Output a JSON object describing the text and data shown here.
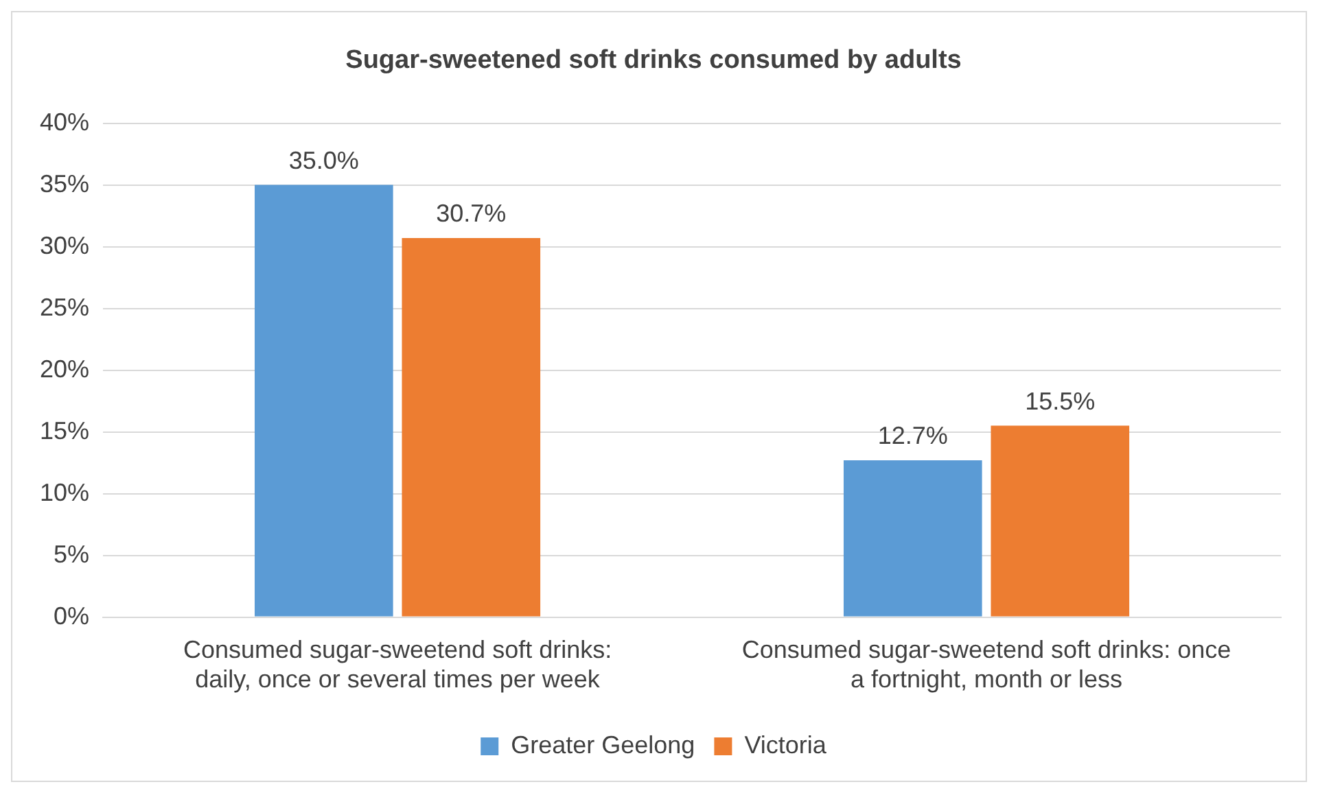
{
  "chart_data": {
    "type": "bar",
    "title": "Sugar-sweetened soft drinks consumed by adults",
    "categories": [
      "Consumed sugar-sweetend soft drinks: daily, once or several times per week",
      "Consumed sugar-sweetend soft drinks: once a fortnight, month or less"
    ],
    "series": [
      {
        "name": "Greater Geelong",
        "color": "#5b9bd5",
        "values": [
          35.0,
          12.7
        ],
        "value_labels": [
          "35.0%",
          "12.7%"
        ]
      },
      {
        "name": "Victoria",
        "color": "#ed7d31",
        "values": [
          30.7,
          15.5
        ],
        "value_labels": [
          "30.7%",
          "15.5%"
        ]
      }
    ],
    "ylim": [
      0,
      40
    ],
    "yticks": [
      {
        "value": 0,
        "label": "0%"
      },
      {
        "value": 5,
        "label": "5%"
      },
      {
        "value": 10,
        "label": "10%"
      },
      {
        "value": 15,
        "label": "15%"
      },
      {
        "value": 20,
        "label": "20%"
      },
      {
        "value": 25,
        "label": "25%"
      },
      {
        "value": 30,
        "label": "30%"
      },
      {
        "value": 35,
        "label": "35%"
      },
      {
        "value": 40,
        "label": "40%"
      }
    ],
    "grid": "y",
    "legend": "bottom"
  }
}
